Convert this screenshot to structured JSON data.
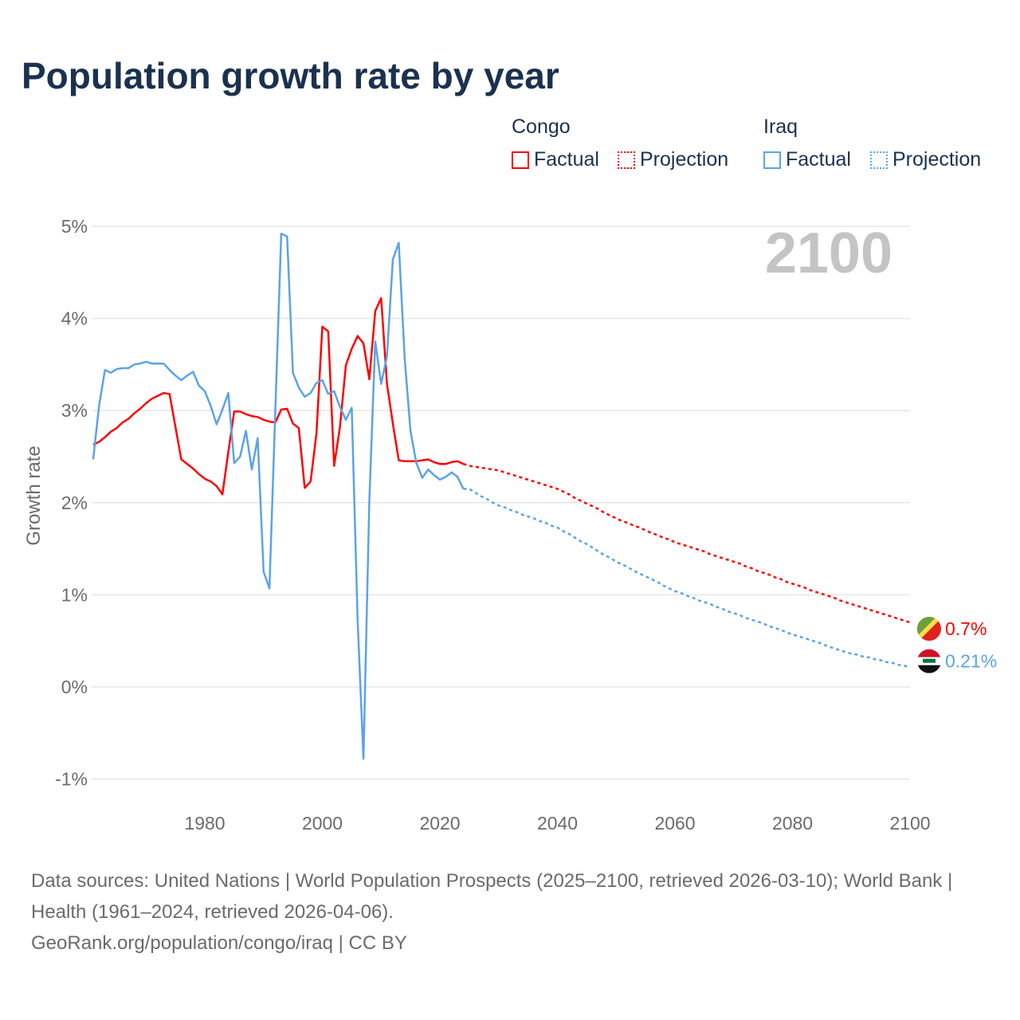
{
  "title": "Population growth rate by year",
  "legend": {
    "groups": [
      {
        "name": "Congo",
        "factual": "Factual",
        "projection": "Projection",
        "color": "#ff0000"
      },
      {
        "name": "Iraq",
        "factual": "Factual",
        "projection": "Projection",
        "color": "#5ba3e8"
      }
    ]
  },
  "footer": {
    "sources": "Data sources: United Nations | World Population Prospects (2025–2100, retrieved 2026-03-10); World Bank | Health (1961–2024, retrieved 2026-04-06).",
    "credit": "GeoRank.org/population/congo/iraq | CC BY"
  },
  "chart_data": {
    "type": "line",
    "title": "Population growth rate by year",
    "ylabel": "Growth rate",
    "xlabel": "",
    "xlim": [
      1961,
      2100
    ],
    "ylim": [
      -1,
      5
    ],
    "x_ticks": [
      "1980",
      "2000",
      "2020",
      "2040",
      "2060",
      "2080",
      "2100"
    ],
    "x_tick_values": [
      1980,
      2000,
      2020,
      2040,
      2060,
      2080,
      2100
    ],
    "y_ticks": [
      "5%",
      "4%",
      "3%",
      "2%",
      "1%",
      "0%",
      "-1%"
    ],
    "y_tick_values": [
      5,
      4,
      3,
      2,
      1,
      0,
      -1
    ],
    "year_label": "2100",
    "grid": true,
    "legend_position": "top-right",
    "series": [
      {
        "name": "Congo",
        "color": "#ff0000",
        "end_label": "0.7%",
        "factual_start": 1961,
        "factual": [
          2.63,
          2.66,
          2.71,
          2.77,
          2.81,
          2.87,
          2.91,
          2.97,
          3.02,
          3.08,
          3.13,
          3.16,
          3.19,
          3.18,
          2.82,
          2.47,
          2.42,
          2.37,
          2.31,
          2.26,
          2.23,
          2.18,
          2.09,
          2.55,
          2.99,
          2.99,
          2.96,
          2.94,
          2.93,
          2.9,
          2.88,
          2.87,
          3.01,
          3.02,
          2.86,
          2.81,
          2.16,
          2.23,
          2.75,
          3.91,
          3.86,
          2.4,
          2.82,
          3.49,
          3.67,
          3.81,
          3.73,
          3.34,
          4.08,
          4.22,
          3.29,
          2.86,
          2.46,
          2.45,
          2.45,
          2.45,
          2.46,
          2.47,
          2.44,
          2.42,
          2.42,
          2.44,
          2.45,
          2.42
        ],
        "projection_start": 2025,
        "projection": [
          2.4,
          2.39,
          2.38,
          2.37,
          2.36,
          2.35,
          2.33,
          2.31,
          2.29,
          2.27,
          2.25,
          2.23,
          2.21,
          2.19,
          2.17,
          2.15,
          2.12,
          2.09,
          2.05,
          2.02,
          1.99,
          1.96,
          1.93,
          1.89,
          1.86,
          1.83,
          1.8,
          1.78,
          1.75,
          1.73,
          1.7,
          1.67,
          1.65,
          1.62,
          1.6,
          1.57,
          1.55,
          1.53,
          1.51,
          1.49,
          1.47,
          1.44,
          1.42,
          1.4,
          1.38,
          1.36,
          1.34,
          1.31,
          1.29,
          1.26,
          1.24,
          1.22,
          1.19,
          1.17,
          1.14,
          1.12,
          1.1,
          1.08,
          1.05,
          1.03,
          1.01,
          0.99,
          0.97,
          0.94,
          0.92,
          0.9,
          0.88,
          0.86,
          0.84,
          0.82,
          0.8,
          0.78,
          0.76,
          0.74,
          0.72,
          0.7
        ]
      },
      {
        "name": "Iraq",
        "color": "#5ba3e8",
        "end_label": "0.21%",
        "factual_start": 1961,
        "factual": [
          2.47,
          3.05,
          3.44,
          3.41,
          3.45,
          3.46,
          3.46,
          3.5,
          3.51,
          3.53,
          3.51,
          3.51,
          3.51,
          3.44,
          3.38,
          3.33,
          3.38,
          3.42,
          3.27,
          3.21,
          3.05,
          2.85,
          3.01,
          3.19,
          2.43,
          2.5,
          2.78,
          2.36,
          2.7,
          1.25,
          1.07,
          3.0,
          4.92,
          4.89,
          3.41,
          3.25,
          3.15,
          3.19,
          3.3,
          3.33,
          3.18,
          3.21,
          3.04,
          2.9,
          3.03,
          0.72,
          -0.78,
          2.03,
          3.75,
          3.29,
          3.59,
          4.64,
          4.82,
          3.57,
          2.78,
          2.43,
          2.27,
          2.36,
          2.3,
          2.25,
          2.28,
          2.33,
          2.28,
          2.15
        ],
        "projection_start": 2025,
        "projection": [
          2.15,
          2.11,
          2.07,
          2.04,
          2.0,
          1.97,
          1.95,
          1.92,
          1.9,
          1.87,
          1.85,
          1.83,
          1.8,
          1.78,
          1.75,
          1.73,
          1.69,
          1.66,
          1.62,
          1.58,
          1.55,
          1.51,
          1.47,
          1.43,
          1.4,
          1.36,
          1.33,
          1.3,
          1.26,
          1.23,
          1.2,
          1.17,
          1.14,
          1.1,
          1.07,
          1.04,
          1.02,
          0.99,
          0.97,
          0.94,
          0.92,
          0.9,
          0.87,
          0.85,
          0.82,
          0.8,
          0.78,
          0.75,
          0.73,
          0.71,
          0.69,
          0.66,
          0.64,
          0.62,
          0.59,
          0.57,
          0.55,
          0.53,
          0.51,
          0.49,
          0.47,
          0.44,
          0.42,
          0.4,
          0.38,
          0.36,
          0.35,
          0.33,
          0.32,
          0.3,
          0.29,
          0.27,
          0.26,
          0.24,
          0.23,
          0.21
        ]
      }
    ]
  }
}
